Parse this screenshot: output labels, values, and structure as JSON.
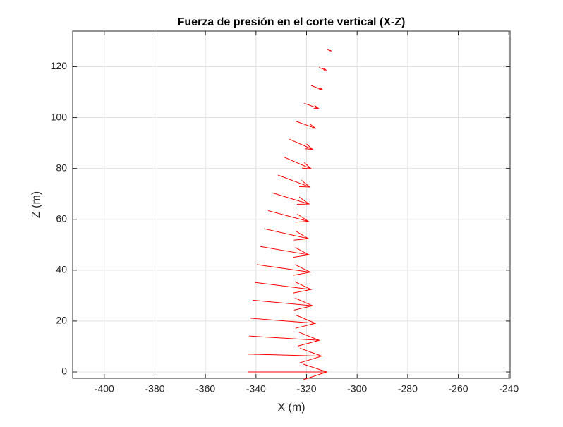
{
  "chart_data": {
    "type": "quiver",
    "title": "Fuerza de presión en el corte vertical (X-Z)",
    "xlabel": "X (m)",
    "ylabel": "Z (m)",
    "color": "#ff0000",
    "grid": true,
    "xlim": [
      -412.5,
      -239.5
    ],
    "ylim": [
      -2.5,
      134
    ],
    "xticks": [
      -400,
      -380,
      -360,
      -340,
      -320,
      -300,
      -280,
      -260,
      -240
    ],
    "yticks": [
      0,
      20,
      40,
      60,
      80,
      100,
      120
    ],
    "x": [
      -343,
      -343,
      -342.7,
      -342.2,
      -341.3,
      -340.5,
      -339.7,
      -338.3,
      -336.9,
      -335.2,
      -333.5,
      -331.3,
      -329,
      -326.8,
      -324.3,
      -320.9,
      -318.2,
      -315.1,
      -311.7
    ],
    "y": [
      0,
      7,
      14.1,
      21.1,
      28.2,
      35.2,
      42.2,
      49.3,
      56.3,
      63.4,
      70.4,
      77.4,
      84.5,
      91.5,
      98.6,
      105.6,
      112.6,
      119.7,
      126.7
    ],
    "u": [
      31,
      29,
      27.7,
      25.7,
      23.7,
      22.3,
      21.2,
      19.3,
      17.6,
      15.9,
      14.5,
      12.6,
      10.9,
      9.2,
      7.8,
      5.6,
      4.5,
      2.8,
      1.4
    ],
    "v": [
      0,
      -0.8,
      -1.7,
      -2,
      -2.2,
      -2.8,
      -3,
      -3.3,
      -3.9,
      -4.2,
      -4.4,
      -4.7,
      -4.7,
      -4,
      -2.8,
      -2,
      -1.7,
      -1,
      -0.5
    ]
  }
}
